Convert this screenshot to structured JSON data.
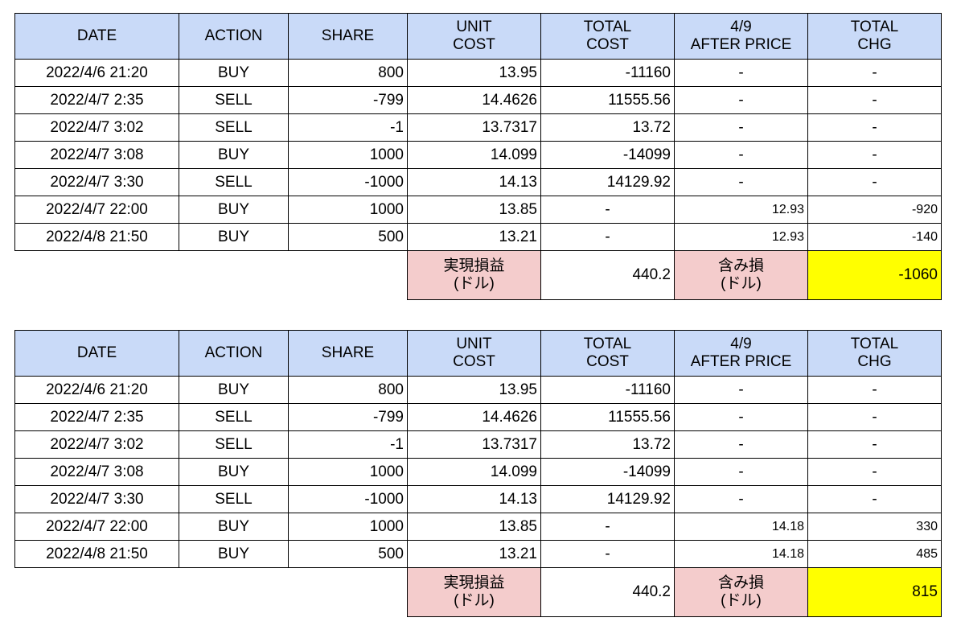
{
  "tables": [
    {
      "header": [
        "DATE",
        "ACTION",
        "SHARE",
        "UNIT\nCOST",
        "TOTAL\nCOST",
        "4/9\nAFTER PRICE",
        "TOTAL\nCHG"
      ],
      "rows": [
        [
          "2022/4/6 21:20",
          "BUY",
          "800",
          "13.95",
          "-11160",
          "-",
          "-"
        ],
        [
          "2022/4/7 2:35",
          "SELL",
          "-799",
          "14.4626",
          "11555.56",
          "-",
          "-"
        ],
        [
          "2022/4/7 3:02",
          "SELL",
          "-1",
          "13.7317",
          "13.72",
          "-",
          "-"
        ],
        [
          "2022/4/7 3:08",
          "BUY",
          "1000",
          "14.099",
          "-14099",
          "-",
          "-"
        ],
        [
          "2022/4/7 3:30",
          "SELL",
          "-1000",
          "14.13",
          "14129.92",
          "-",
          "-"
        ],
        [
          "2022/4/7 22:00",
          "BUY",
          "1000",
          "13.85",
          "-",
          "12.93",
          "-920"
        ],
        [
          "2022/4/8 21:50",
          "BUY",
          "500",
          "13.21",
          "-",
          "12.93",
          "-140"
        ]
      ],
      "summary": {
        "realized_label": "実現損益\n(ドル)",
        "realized_value": "440.2",
        "unrealized_label": "含み損\n(ドル)",
        "unrealized_value": "-1060"
      }
    },
    {
      "header": [
        "DATE",
        "ACTION",
        "SHARE",
        "UNIT\nCOST",
        "TOTAL\nCOST",
        "4/9\nAFTER PRICE",
        "TOTAL\nCHG"
      ],
      "rows": [
        [
          "2022/4/6 21:20",
          "BUY",
          "800",
          "13.95",
          "-11160",
          "-",
          "-"
        ],
        [
          "2022/4/7 2:35",
          "SELL",
          "-799",
          "14.4626",
          "11555.56",
          "-",
          "-"
        ],
        [
          "2022/4/7 3:02",
          "SELL",
          "-1",
          "13.7317",
          "13.72",
          "-",
          "-"
        ],
        [
          "2022/4/7 3:08",
          "BUY",
          "1000",
          "14.099",
          "-14099",
          "-",
          "-"
        ],
        [
          "2022/4/7 3:30",
          "SELL",
          "-1000",
          "14.13",
          "14129.92",
          "-",
          "-"
        ],
        [
          "2022/4/7 22:00",
          "BUY",
          "1000",
          "13.85",
          "-",
          "14.18",
          "330"
        ],
        [
          "2022/4/8 21:50",
          "BUY",
          "500",
          "13.21",
          "-",
          "14.18",
          "485"
        ]
      ],
      "summary": {
        "realized_label": "実現損益\n(ドル)",
        "realized_value": "440.2",
        "unrealized_label": "含み損\n(ドル)",
        "unrealized_value": "815"
      }
    }
  ]
}
